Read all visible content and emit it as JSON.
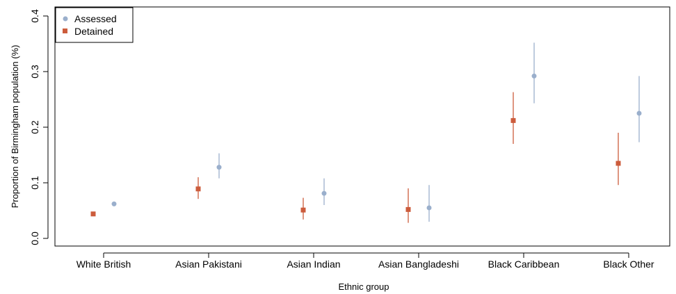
{
  "chart_data": {
    "type": "scatter",
    "xlabel": "Ethnic group",
    "ylabel": "Proportion of Birmingham population (%)",
    "categories": [
      "White British",
      "Asian Pakistani",
      "Asian Indian",
      "Asian Bangladeshi",
      "Black Caribbean",
      "Black Other"
    ],
    "yticks": [
      "0.0",
      "0.1",
      "0.2",
      "0.3",
      "0.4"
    ],
    "ylim": [
      -0.01,
      0.41
    ],
    "grid": false,
    "legend_position": "top-left",
    "series": [
      {
        "name": "Detained",
        "marker": "square",
        "color": "#cc5c3c",
        "values": [
          0.044,
          0.089,
          0.051,
          0.052,
          0.212,
          0.135
        ],
        "lower": [
          0.041,
          0.071,
          0.034,
          0.028,
          0.17,
          0.096
        ],
        "upper": [
          0.047,
          0.11,
          0.073,
          0.09,
          0.263,
          0.19
        ]
      },
      {
        "name": "Assessed",
        "marker": "circle",
        "color": "#9aafcc",
        "values": [
          0.062,
          0.128,
          0.081,
          0.055,
          0.292,
          0.225
        ],
        "lower": [
          0.058,
          0.108,
          0.06,
          0.03,
          0.243,
          0.173
        ],
        "upper": [
          0.066,
          0.153,
          0.108,
          0.096,
          0.352,
          0.292
        ]
      }
    ]
  }
}
